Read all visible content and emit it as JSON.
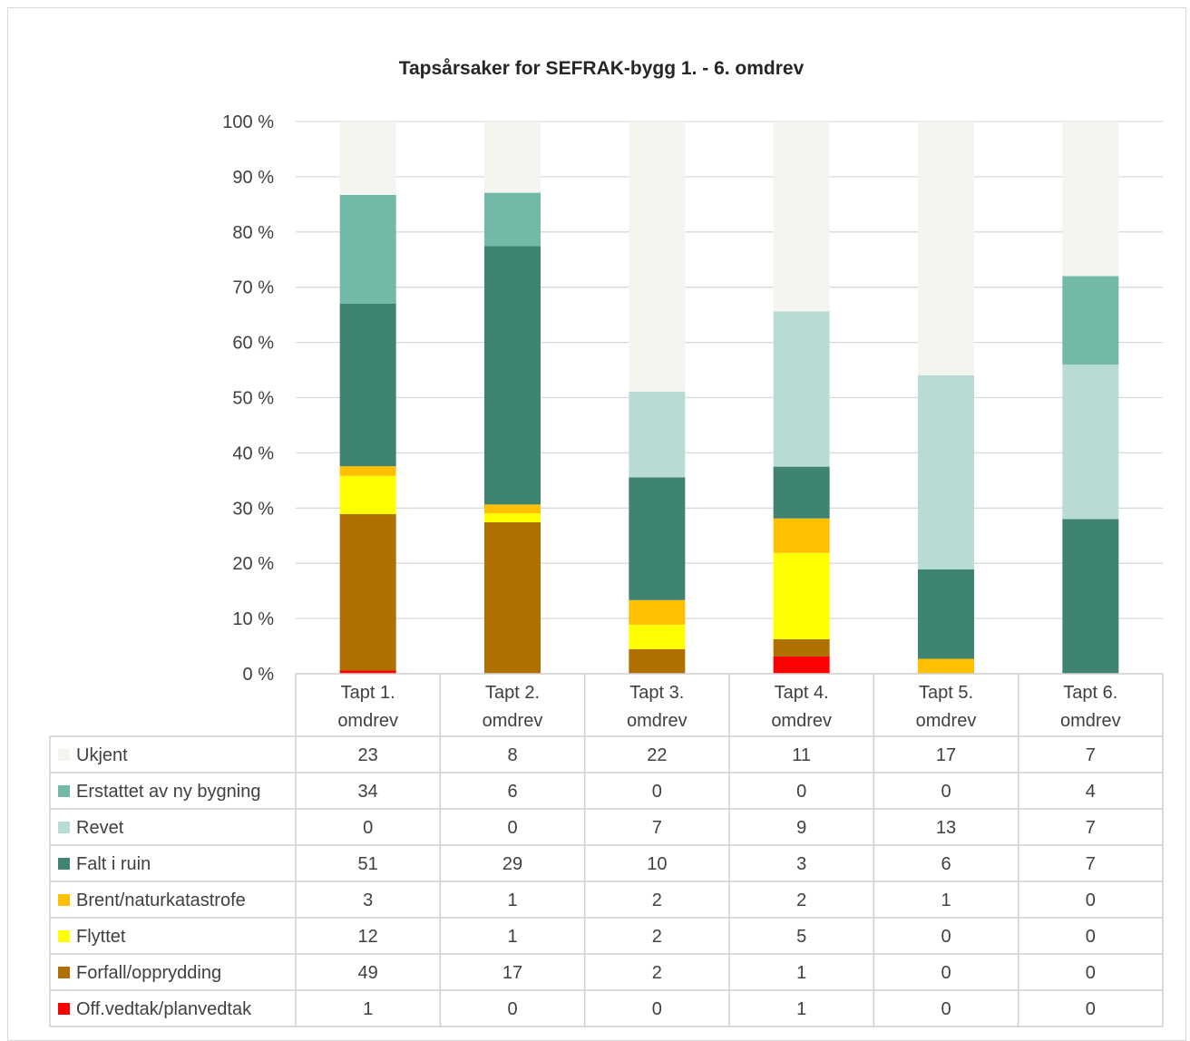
{
  "chart_data": {
    "type": "bar",
    "stacked": "percent",
    "title": "Tapsårsaker for SEFRAK-bygg 1. - 6. omdrev",
    "categories": [
      [
        "Tapt 1.",
        "omdrev"
      ],
      [
        "Tapt 2.",
        "omdrev"
      ],
      [
        "Tapt 3.",
        "omdrev"
      ],
      [
        "Tapt 4.",
        "omdrev"
      ],
      [
        "Tapt 5.",
        "omdrev"
      ],
      [
        "Tapt 6.",
        "omdrev"
      ]
    ],
    "y_ticks": [
      "0 %",
      "10 %",
      "20 %",
      "30 %",
      "40 %",
      "50 %",
      "60 %",
      "70 %",
      "80 %",
      "90 %",
      "100 %"
    ],
    "ylim": [
      0,
      100
    ],
    "grid": true,
    "legend": "data-table",
    "series_top_to_bottom": [
      {
        "name": "Ukjent",
        "color": "#f4f5ef",
        "values": [
          23,
          8,
          22,
          11,
          17,
          7
        ]
      },
      {
        "name": "Erstattet av ny bygning",
        "color": "#72b9a7",
        "values": [
          34,
          6,
          0,
          0,
          0,
          4
        ]
      },
      {
        "name": "Revet",
        "color": "#b8dbd4",
        "values": [
          0,
          0,
          7,
          9,
          13,
          7
        ]
      },
      {
        "name": "Falt i ruin",
        "color": "#3f8470",
        "values": [
          51,
          29,
          10,
          3,
          6,
          7
        ]
      },
      {
        "name": "Brent/naturkatastrofe",
        "color": "#ffc000",
        "values": [
          3,
          1,
          2,
          2,
          1,
          0
        ]
      },
      {
        "name": "Flyttet",
        "color": "#ffff00",
        "values": [
          12,
          1,
          2,
          5,
          0,
          0
        ]
      },
      {
        "name": "Forfall/opprydding",
        "color": "#b07000",
        "values": [
          49,
          17,
          2,
          1,
          0,
          0
        ]
      },
      {
        "name": "Off.vedtak/planvedtak",
        "color": "#ff0000",
        "values": [
          1,
          0,
          0,
          1,
          0,
          0
        ]
      }
    ]
  }
}
